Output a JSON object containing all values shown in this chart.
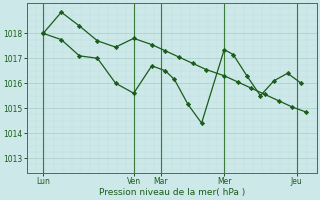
{
  "xlabel": "Pression niveau de la mer( hPa )",
  "background_color": "#cce8e8",
  "grid_major_color": "#aacccc",
  "grid_minor_color": "#c0dcdc",
  "line_color": "#1a5c1a",
  "text_color": "#1a5c1a",
  "yticks": [
    1013,
    1014,
    1015,
    1016,
    1017,
    1018
  ],
  "ylim": [
    1012.4,
    1019.2
  ],
  "xlim": [
    0,
    320
  ],
  "xtick_labels": [
    "Lun",
    "Ven",
    "Mar",
    "Mer",
    "Jeu"
  ],
  "xtick_positions": [
    18,
    118,
    148,
    218,
    298
  ],
  "day_vlines": [
    18,
    118,
    148,
    218,
    298
  ],
  "line1_x": [
    18,
    38,
    58,
    78,
    98,
    118,
    138,
    153,
    163,
    178,
    193,
    218,
    228,
    243,
    258,
    273,
    288,
    303
  ],
  "line1_y": [
    1018.0,
    1017.75,
    1017.1,
    1017.0,
    1016.0,
    1015.6,
    1016.7,
    1016.5,
    1016.15,
    1015.15,
    1014.4,
    1017.35,
    1017.15,
    1016.3,
    1015.5,
    1016.1,
    1016.4,
    1016.0
  ],
  "line2_x": [
    18,
    38,
    58,
    78,
    98,
    118,
    138,
    153,
    168,
    183,
    198,
    218,
    233,
    248,
    263,
    278,
    293,
    308
  ],
  "line2_y": [
    1018.0,
    1018.85,
    1018.3,
    1017.7,
    1017.45,
    1017.8,
    1017.55,
    1017.3,
    1017.05,
    1016.8,
    1016.55,
    1016.3,
    1016.05,
    1015.8,
    1015.55,
    1015.3,
    1015.05,
    1014.85
  ],
  "figsize": [
    3.2,
    2.0
  ],
  "dpi": 100
}
